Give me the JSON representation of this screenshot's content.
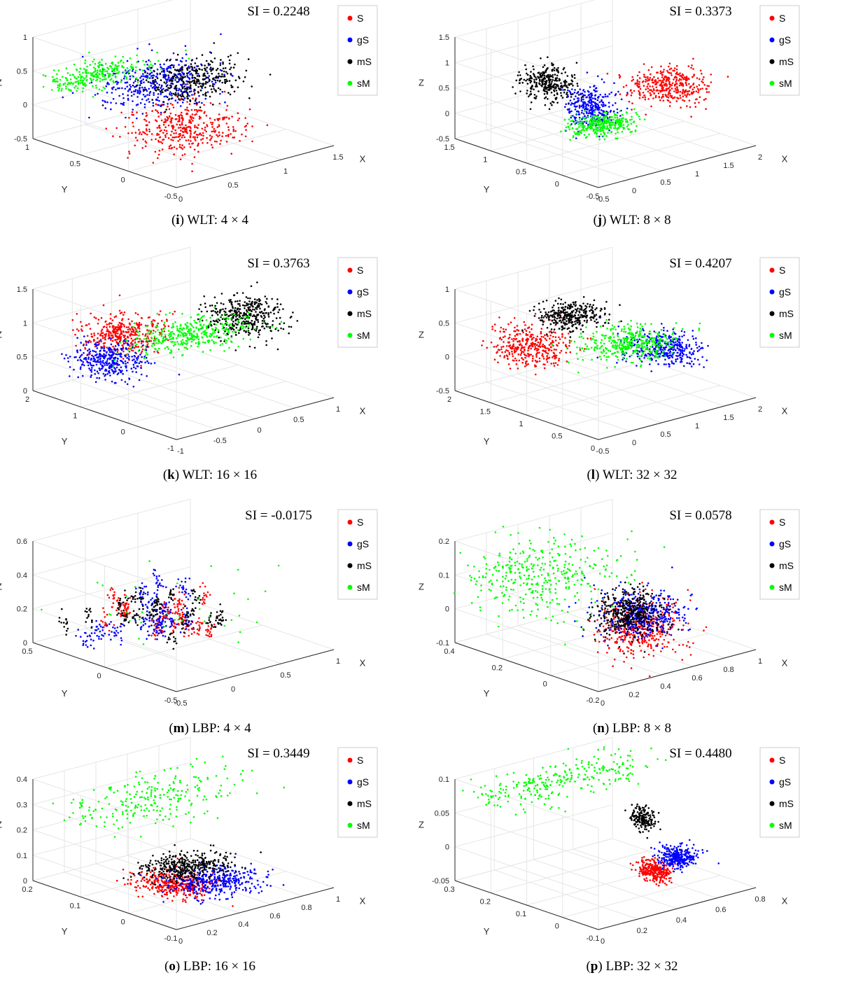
{
  "legend_labels": [
    "S",
    "gS",
    "mS",
    "sM"
  ],
  "axis_names": {
    "x": "X",
    "y": "Y",
    "z": "Z"
  },
  "colors": {
    "S": "#ff0000",
    "gS": "#0000ff",
    "mS": "#000000",
    "sM": "#00ff00",
    "grid": "#e6e6e6",
    "axis": "#262626"
  },
  "chart_data": [
    {
      "type": "scatter",
      "id": "i",
      "caption_letter": "i",
      "caption_text": "WLT: 4 × 4",
      "title": "SI = 0.2248",
      "xlabel": "X",
      "ylabel": "Y",
      "zlabel": "Z",
      "xlim": [
        0,
        1.5
      ],
      "ylim": [
        -0.5,
        1
      ],
      "zlim": [
        -0.5,
        1
      ],
      "xticks": [
        "0",
        "0.5",
        "1",
        "1.5"
      ],
      "yticks": [
        "-0.5",
        "0",
        "0.5",
        "1"
      ],
      "zticks": [
        "-0.5",
        "0",
        "0.5",
        "1"
      ],
      "series": [
        {
          "name": "S",
          "center": [
            0.7,
            0.2,
            -0.25
          ],
          "spread": [
            0.22,
            0.18,
            0.18
          ],
          "n": 420,
          "shape": "blob"
        },
        {
          "name": "gS",
          "center": [
            0.7,
            0.45,
            0.3
          ],
          "spread": [
            0.25,
            0.18,
            0.15
          ],
          "n": 420,
          "shape": "blob"
        },
        {
          "name": "mS",
          "center": [
            0.95,
            0.35,
            0.3
          ],
          "spread": [
            0.2,
            0.15,
            0.12
          ],
          "n": 320,
          "shape": "blob"
        },
        {
          "name": "sM",
          "center": [
            0.3,
            0.7,
            0.45
          ],
          "spread": [
            0.25,
            0.1,
            0.07
          ],
          "n": 300,
          "shape": "blob"
        }
      ]
    },
    {
      "type": "scatter",
      "id": "j",
      "caption_letter": "j",
      "caption_text": "WLT: 8 × 8",
      "title": "SI = 0.3373",
      "xlabel": "X",
      "ylabel": "Y",
      "zlabel": "Z",
      "xlim": [
        -0.5,
        2
      ],
      "ylim": [
        -0.5,
        1.5
      ],
      "zlim": [
        -0.5,
        1.5
      ],
      "xticks": [
        "-0.5",
        "0",
        "0.5",
        "1",
        "1.5",
        "2"
      ],
      "yticks": [
        "-0.5",
        "0",
        "0.5",
        "1",
        "1.5"
      ],
      "zticks": [
        "-0.5",
        "0",
        "0.5",
        "1",
        "1.5"
      ],
      "series": [
        {
          "name": "S",
          "center": [
            1.5,
            0.3,
            0.45
          ],
          "spread": [
            0.25,
            0.18,
            0.15
          ],
          "n": 380,
          "shape": "blob"
        },
        {
          "name": "gS",
          "center": [
            0.4,
            0.4,
            0.35
          ],
          "spread": [
            0.12,
            0.15,
            0.2
          ],
          "n": 320,
          "shape": "blob"
        },
        {
          "name": "mS",
          "center": [
            0.05,
            0.7,
            0.8
          ],
          "spread": [
            0.15,
            0.15,
            0.15
          ],
          "n": 300,
          "shape": "blob"
        },
        {
          "name": "sM",
          "center": [
            0.45,
            0.3,
            0.05
          ],
          "spread": [
            0.22,
            0.12,
            0.07
          ],
          "n": 320,
          "shape": "blob"
        }
      ]
    },
    {
      "type": "scatter",
      "id": "k",
      "caption_letter": "k",
      "caption_text": "WLT: 16 × 16",
      "title": "SI = 0.3763",
      "xlabel": "X",
      "ylabel": "Y",
      "zlabel": "Z",
      "xlim": [
        -1,
        1
      ],
      "ylim": [
        -1,
        2
      ],
      "zlim": [
        0,
        1.5
      ],
      "xticks": [
        "-1",
        "-0.5",
        "0",
        "0.5",
        "1"
      ],
      "yticks": [
        "-1",
        "0",
        "1",
        "2"
      ],
      "zticks": [
        "0",
        "0.5",
        "1",
        "1.5"
      ],
      "series": [
        {
          "name": "S",
          "center": [
            -0.45,
            1.0,
            0.9
          ],
          "spread": [
            0.22,
            0.3,
            0.12
          ],
          "n": 380,
          "shape": "blob"
        },
        {
          "name": "gS",
          "center": [
            -0.75,
            0.85,
            0.65
          ],
          "spread": [
            0.17,
            0.28,
            0.12
          ],
          "n": 380,
          "shape": "blob"
        },
        {
          "name": "mS",
          "center": [
            0.65,
            0.3,
            1.0
          ],
          "spread": [
            0.17,
            0.3,
            0.14
          ],
          "n": 380,
          "shape": "blob"
        },
        {
          "name": "sM",
          "center": [
            0.15,
            0.65,
            0.8
          ],
          "spread": [
            0.35,
            0.25,
            0.08
          ],
          "n": 380,
          "shape": "blob"
        }
      ]
    },
    {
      "type": "scatter",
      "id": "l",
      "caption_letter": "l",
      "caption_text": "WLT: 32 × 32",
      "title": "SI = 0.4207",
      "xlabel": "X",
      "ylabel": "Y",
      "zlabel": "Z",
      "xlim": [
        -0.5,
        2
      ],
      "ylim": [
        0,
        2
      ],
      "zlim": [
        -0.5,
        1
      ],
      "xticks": [
        "-0.5",
        "0",
        "0.5",
        "1",
        "1.5",
        "2"
      ],
      "yticks": [
        "0",
        "0.5",
        "1",
        "1.5",
        "2"
      ],
      "zticks": [
        "-0.5",
        "0",
        "0.5",
        "1"
      ],
      "series": [
        {
          "name": "S",
          "center": [
            -0.1,
            1.3,
            0.3
          ],
          "spread": [
            0.25,
            0.2,
            0.12
          ],
          "n": 380,
          "shape": "blob"
        },
        {
          "name": "gS",
          "center": [
            1.55,
            0.9,
            0.0
          ],
          "spread": [
            0.22,
            0.2,
            0.1
          ],
          "n": 380,
          "shape": "blob"
        },
        {
          "name": "mS",
          "center": [
            0.65,
            1.4,
            0.55
          ],
          "spread": [
            0.2,
            0.15,
            0.08
          ],
          "n": 330,
          "shape": "blob"
        },
        {
          "name": "sM",
          "center": [
            1.15,
            1.0,
            0.15
          ],
          "spread": [
            0.3,
            0.2,
            0.08
          ],
          "n": 380,
          "shape": "blob"
        }
      ]
    },
    {
      "type": "scatter",
      "id": "m",
      "caption_letter": "m",
      "caption_text": "LBP: 4 × 4",
      "title": "SI = -0.0175",
      "xlabel": "X",
      "ylabel": "Y",
      "zlabel": "Z",
      "xlim": [
        -0.5,
        1
      ],
      "ylim": [
        -0.5,
        0.5
      ],
      "zlim": [
        -0.1,
        0.65
      ],
      "xticks": [
        "-0.5",
        "0",
        "0.5",
        "1"
      ],
      "yticks": [
        "-0.5",
        "0",
        "0.5"
      ],
      "zticks": [
        "0",
        "0.2",
        "0.4",
        "0.6"
      ],
      "series": [
        {
          "name": "S",
          "center": [
            0.25,
            0.1,
            0.15
          ],
          "spread": [
            0.45,
            0.25,
            0.12
          ],
          "n": 260,
          "shape": "clusters",
          "clusters": 16,
          "csize": 0.018
        },
        {
          "name": "gS",
          "center": [
            0.0,
            0.1,
            0.15
          ],
          "spread": [
            0.45,
            0.25,
            0.12
          ],
          "n": 300,
          "shape": "clusters",
          "clusters": 14,
          "csize": 0.02
        },
        {
          "name": "mS",
          "center": [
            0.1,
            0.05,
            0.15
          ],
          "spread": [
            0.45,
            0.25,
            0.12
          ],
          "n": 240,
          "shape": "clusters",
          "clusters": 18,
          "csize": 0.015
        },
        {
          "name": "sM",
          "center": [
            0.0,
            0.1,
            0.2
          ],
          "spread": [
            0.5,
            0.28,
            0.14
          ],
          "n": 50,
          "shape": "blob"
        }
      ]
    },
    {
      "type": "scatter",
      "id": "n",
      "caption_letter": "n",
      "caption_text": "LBP: 8 × 8",
      "title": "SI = 0.0578",
      "xlabel": "X",
      "ylabel": "Y",
      "zlabel": "Z",
      "xlim": [
        0,
        1
      ],
      "ylim": [
        -0.2,
        0.4
      ],
      "zlim": [
        -0.1,
        0.2
      ],
      "xticks": [
        "0",
        "0.2",
        "0.4",
        "0.6",
        "0.8",
        "1"
      ],
      "yticks": [
        "-0.2",
        "0",
        "0.2",
        "0.4"
      ],
      "zticks": [
        "-0.1",
        "0",
        "0.1",
        "0.2"
      ],
      "series": [
        {
          "name": "S",
          "center": [
            0.55,
            0.0,
            -0.03
          ],
          "spread": [
            0.1,
            0.06,
            0.04
          ],
          "n": 420,
          "shape": "blob"
        },
        {
          "name": "gS",
          "center": [
            0.6,
            0.02,
            0.0
          ],
          "spread": [
            0.1,
            0.06,
            0.03
          ],
          "n": 420,
          "shape": "blob"
        },
        {
          "name": "mS",
          "center": [
            0.55,
            0.03,
            0.01
          ],
          "spread": [
            0.08,
            0.05,
            0.03
          ],
          "n": 400,
          "shape": "blob"
        },
        {
          "name": "sM",
          "center": [
            0.25,
            0.25,
            0.1
          ],
          "spread": [
            0.25,
            0.1,
            0.05
          ],
          "n": 420,
          "shape": "blob"
        }
      ]
    },
    {
      "type": "scatter",
      "id": "o",
      "caption_letter": "o",
      "caption_text": "LBP: 16 × 16",
      "title": "SI = 0.3449",
      "xlabel": "X",
      "ylabel": "Y",
      "zlabel": "Z",
      "xlim": [
        0,
        1
      ],
      "ylim": [
        -0.1,
        0.2
      ],
      "zlim": [
        -0.05,
        0.4
      ],
      "xticks": [
        "0",
        "0.2",
        "0.4",
        "0.6",
        "0.8",
        "1"
      ],
      "yticks": [
        "-0.1",
        "0",
        "0.1",
        "0.2"
      ],
      "zticks": [
        "0",
        "0.1",
        "0.2",
        "0.3",
        "0.4"
      ],
      "series": [
        {
          "name": "S",
          "center": [
            0.35,
            0.02,
            0.0
          ],
          "spread": [
            0.08,
            0.03,
            0.015
          ],
          "n": 380,
          "shape": "blob"
        },
        {
          "name": "gS",
          "center": [
            0.55,
            0.0,
            -0.01
          ],
          "spread": [
            0.12,
            0.03,
            0.015
          ],
          "n": 380,
          "shape": "blob"
        },
        {
          "name": "mS",
          "center": [
            0.55,
            0.06,
            0.015
          ],
          "spread": [
            0.12,
            0.025,
            0.012
          ],
          "n": 380,
          "shape": "blob"
        },
        {
          "name": "sM",
          "center": [
            0.4,
            0.1,
            0.3
          ],
          "spread": [
            0.3,
            0.04,
            0.04
          ],
          "n": 260,
          "shape": "blob"
        }
      ]
    },
    {
      "type": "scatter",
      "id": "p",
      "caption_letter": "p",
      "caption_text": "LBP: 32 × 32",
      "title": "SI = 0.4480",
      "xlabel": "X",
      "ylabel": "Y",
      "zlabel": "Z",
      "xlim": [
        0,
        0.8
      ],
      "ylim": [
        -0.1,
        0.3
      ],
      "zlim": [
        -0.05,
        0.12
      ],
      "xticks": [
        "0",
        "0.2",
        "0.4",
        "0.6",
        "0.8"
      ],
      "yticks": [
        "-0.1",
        "0",
        "0.1",
        "0.2",
        "0.3"
      ],
      "zticks": [
        "-0.05",
        "0",
        "0.05",
        "0.1"
      ],
      "series": [
        {
          "name": "S",
          "center": [
            0.5,
            0.02,
            -0.02
          ],
          "spread": [
            0.025,
            0.02,
            0.008
          ],
          "n": 280,
          "shape": "blob"
        },
        {
          "name": "gS",
          "center": [
            0.58,
            0.0,
            0.0
          ],
          "spread": [
            0.035,
            0.02,
            0.008
          ],
          "n": 320,
          "shape": "blob"
        },
        {
          "name": "mS",
          "center": [
            0.55,
            0.08,
            0.05
          ],
          "spread": [
            0.015,
            0.015,
            0.01
          ],
          "n": 180,
          "shape": "blob"
        },
        {
          "name": "sM",
          "center": [
            0.35,
            0.22,
            0.1
          ],
          "spread": [
            0.3,
            0.04,
            0.01
          ],
          "n": 300,
          "shape": "blob"
        }
      ]
    }
  ]
}
